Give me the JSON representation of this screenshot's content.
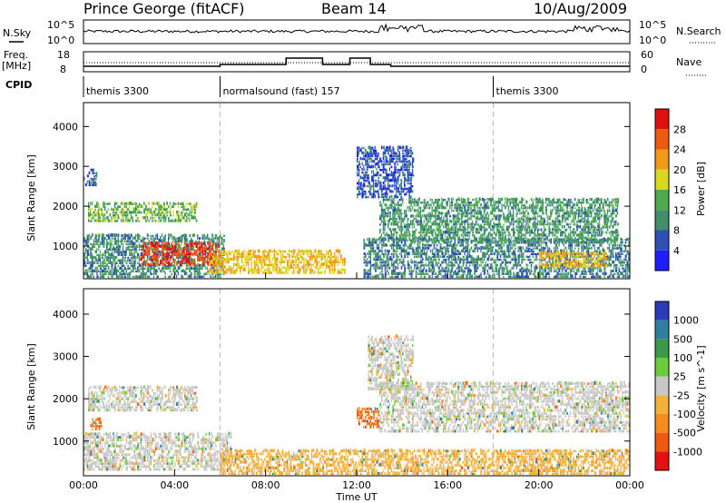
{
  "header": {
    "station": "Prince George (fitACF)",
    "beam": "Beam 14",
    "date": "10/Aug/2009"
  },
  "top_panels": {
    "nsky_label": "N.Sky",
    "nsearch_label": "N.Search",
    "freq_label_line1": "Freq.",
    "freq_label_line2": "[MHz]",
    "nave_label": "Nave",
    "cpid_label": "CPID",
    "noise_left_ticks": [
      "10^5",
      "10^0"
    ],
    "noise_right_ticks": [
      "10^5",
      "10^0"
    ],
    "freq_left_ticks": [
      "18",
      "8"
    ],
    "freq_right_ticks": [
      "60",
      "0"
    ],
    "cpid_segments": [
      {
        "label": "themis 3300",
        "start_hour": 0
      },
      {
        "label": "normalsound (fast) 157",
        "start_hour": 6
      },
      {
        "label": "themis 3300",
        "start_hour": 18
      }
    ]
  },
  "axes": {
    "ylabel": "Slant Range [km]",
    "xlabel": "Time UT",
    "y_ticks": [
      "1000",
      "2000",
      "3000",
      "4000"
    ],
    "x_ticks": [
      "00:00",
      "04:00",
      "08:00",
      "12:00",
      "16:00",
      "20:00",
      "00:00"
    ]
  },
  "power_colorbar": {
    "label": "Power [dB]",
    "ticks": [
      "4",
      "8",
      "12",
      "16",
      "20",
      "24",
      "28"
    ],
    "colors": [
      "#1d1dff",
      "#2e4fb5",
      "#3e8f6a",
      "#4daa4d",
      "#d8d820",
      "#f29a18",
      "#f05a10",
      "#e01010"
    ]
  },
  "velocity_colorbar": {
    "label": "Velocity [m s^-1]",
    "ticks": [
      "1000",
      "500",
      "100",
      "25",
      "-25",
      "-100",
      "-500",
      "-1000"
    ],
    "colors": [
      "#2a3ab8",
      "#2e7fa0",
      "#3a9a4a",
      "#6ccc3a",
      "#c8c8c8",
      "#f5b03a",
      "#f58c20",
      "#f05a10",
      "#e81010"
    ]
  },
  "chart_data": [
    {
      "type": "heatmap",
      "panel": "power",
      "x_unit": "hour UT",
      "y_unit": "km",
      "xlim": [
        0,
        24
      ],
      "ylim": [
        180,
        4600
      ],
      "colorbar_label": "Power [dB]",
      "regions": [
        {
          "x0": 0.0,
          "x1": 0.6,
          "y0": 2500,
          "y1": 2950,
          "value_db": 7
        },
        {
          "x0": 0.2,
          "x1": 5.0,
          "y0": 1600,
          "y1": 2100,
          "value_db": 14
        },
        {
          "x0": 0.0,
          "x1": 6.2,
          "y0": 200,
          "y1": 1300,
          "value_db": 10
        },
        {
          "x0": 2.5,
          "x1": 6.0,
          "y0": 500,
          "y1": 1100,
          "value_db": 28
        },
        {
          "x0": 5.5,
          "x1": 11.5,
          "y0": 300,
          "y1": 900,
          "value_db": 20
        },
        {
          "x0": 12.3,
          "x1": 24.0,
          "y0": 200,
          "y1": 1200,
          "value_db": 9
        },
        {
          "x0": 13.0,
          "x1": 23.5,
          "y0": 1100,
          "y1": 2200,
          "value_db": 11
        },
        {
          "x0": 20.0,
          "x1": 23.0,
          "y0": 450,
          "y1": 850,
          "value_db": 20
        },
        {
          "x0": 12.0,
          "x1": 14.5,
          "y0": 2200,
          "y1": 3500,
          "value_db": 6
        }
      ]
    },
    {
      "type": "heatmap",
      "panel": "velocity",
      "x_unit": "hour UT",
      "y_unit": "km",
      "xlim": [
        0,
        24
      ],
      "ylim": [
        180,
        4600
      ],
      "colorbar_label": "Velocity [m s^-1]",
      "regions": [
        {
          "x0": 0.2,
          "x1": 5.0,
          "y0": 1700,
          "y1": 2300,
          "value_ms": 0
        },
        {
          "x0": 0.3,
          "x1": 0.8,
          "y0": 1250,
          "y1": 1550,
          "value_ms": -500
        },
        {
          "x0": 0.0,
          "x1": 6.5,
          "y0": 300,
          "y1": 1200,
          "value_ms": 0
        },
        {
          "x0": 6.0,
          "x1": 24.0,
          "y0": 200,
          "y1": 800,
          "value_ms": -50
        },
        {
          "x0": 12.0,
          "x1": 13.0,
          "y0": 1300,
          "y1": 1800,
          "value_ms": -500
        },
        {
          "x0": 13.0,
          "x1": 24.0,
          "y0": 1200,
          "y1": 2400,
          "value_ms": 0
        },
        {
          "x0": 12.5,
          "x1": 14.5,
          "y0": 2200,
          "y1": 3500,
          "value_ms": 0
        }
      ]
    }
  ]
}
